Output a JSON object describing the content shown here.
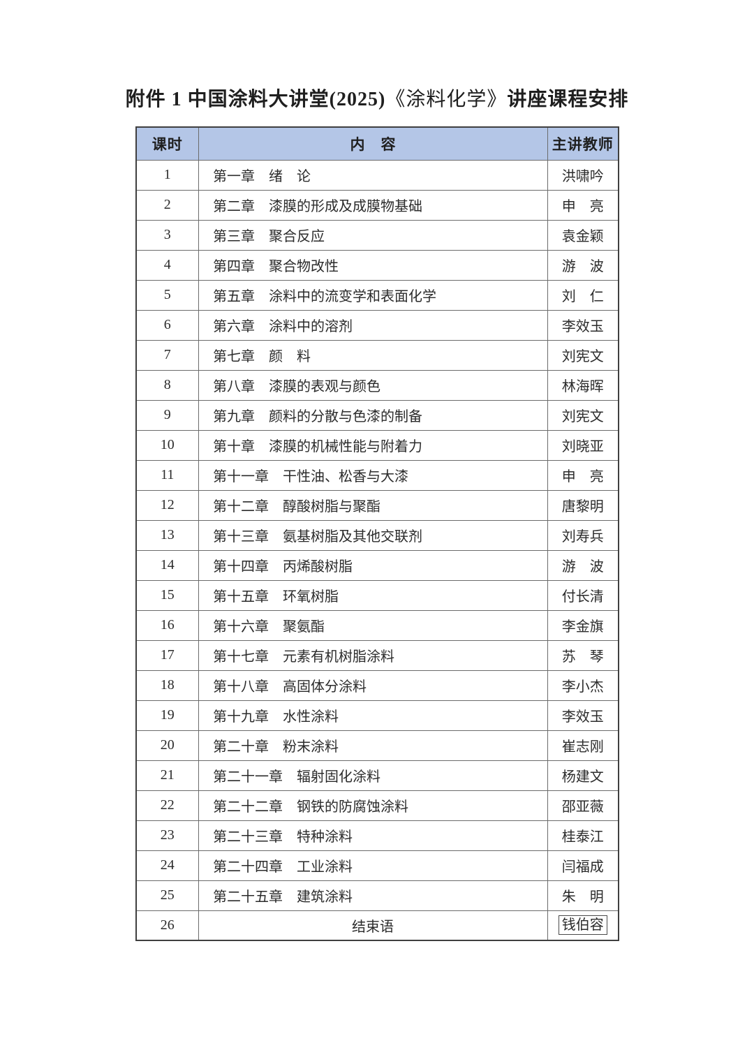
{
  "title": {
    "prefix": "附件 1 中国涂料大讲堂(2025)",
    "book": "《涂料化学》",
    "suffix": "讲座课程安排"
  },
  "table": {
    "headers": [
      "课时",
      "内　容",
      "主讲教师"
    ],
    "rows": [
      {
        "hour": "1",
        "content": "第一章　绪　论",
        "teacher": "洪啸吟"
      },
      {
        "hour": "2",
        "content": "第二章　漆膜的形成及成膜物基础",
        "teacher": "申　亮"
      },
      {
        "hour": "3",
        "content": "第三章　聚合反应",
        "teacher": "袁金颖"
      },
      {
        "hour": "4",
        "content": "第四章　聚合物改性",
        "teacher": "游　波"
      },
      {
        "hour": "5",
        "content": "第五章　涂料中的流变学和表面化学",
        "teacher": "刘　仁"
      },
      {
        "hour": "6",
        "content": "第六章　涂料中的溶剂",
        "teacher": "李效玉"
      },
      {
        "hour": "7",
        "content": "第七章　颜　料",
        "teacher": "刘宪文"
      },
      {
        "hour": "8",
        "content": "第八章　漆膜的表观与颜色",
        "teacher": "林海晖"
      },
      {
        "hour": "9",
        "content": "第九章　颜料的分散与色漆的制备",
        "teacher": "刘宪文"
      },
      {
        "hour": "10",
        "content": "第十章　漆膜的机械性能与附着力",
        "teacher": "刘晓亚"
      },
      {
        "hour": "11",
        "content": "第十一章　干性油、松香与大漆",
        "teacher": "申　亮"
      },
      {
        "hour": "12",
        "content": "第十二章　醇酸树脂与聚酯",
        "teacher": "唐黎明"
      },
      {
        "hour": "13",
        "content": "第十三章　氨基树脂及其他交联剂",
        "teacher": "刘寿兵"
      },
      {
        "hour": "14",
        "content": "第十四章　丙烯酸树脂",
        "teacher": "游　波"
      },
      {
        "hour": "15",
        "content": "第十五章　环氧树脂",
        "teacher": "付长清"
      },
      {
        "hour": "16",
        "content": "第十六章　聚氨酯",
        "teacher": "李金旗"
      },
      {
        "hour": "17",
        "content": "第十七章　元素有机树脂涂料",
        "teacher": "苏　琴"
      },
      {
        "hour": "18",
        "content": "第十八章　高固体分涂料",
        "teacher": "李小杰"
      },
      {
        "hour": "19",
        "content": "第十九章　水性涂料",
        "teacher": "李效玉"
      },
      {
        "hour": "20",
        "content": "第二十章　粉末涂料",
        "teacher": "崔志刚"
      },
      {
        "hour": "21",
        "content": "第二十一章　辐射固化涂料",
        "teacher": "杨建文"
      },
      {
        "hour": "22",
        "content": "第二十二章　钢铁的防腐蚀涂料",
        "teacher": "邵亚薇"
      },
      {
        "hour": "23",
        "content": "第二十三章　特种涂料",
        "teacher": "桂泰江"
      },
      {
        "hour": "24",
        "content": "第二十四章　工业涂料",
        "teacher": "闫福成"
      },
      {
        "hour": "25",
        "content": "第二十五章　建筑涂料",
        "teacher": "朱　明"
      },
      {
        "hour": "26",
        "content": "结束语",
        "teacher": "钱伯容",
        "content_center": true,
        "teacher_boxed": true
      }
    ]
  },
  "colors": {
    "header_bg": "#b4c6e7",
    "border_inner": "#6b6b6b",
    "border_outer": "#3f3f3f",
    "text": "#1f1f1f"
  }
}
